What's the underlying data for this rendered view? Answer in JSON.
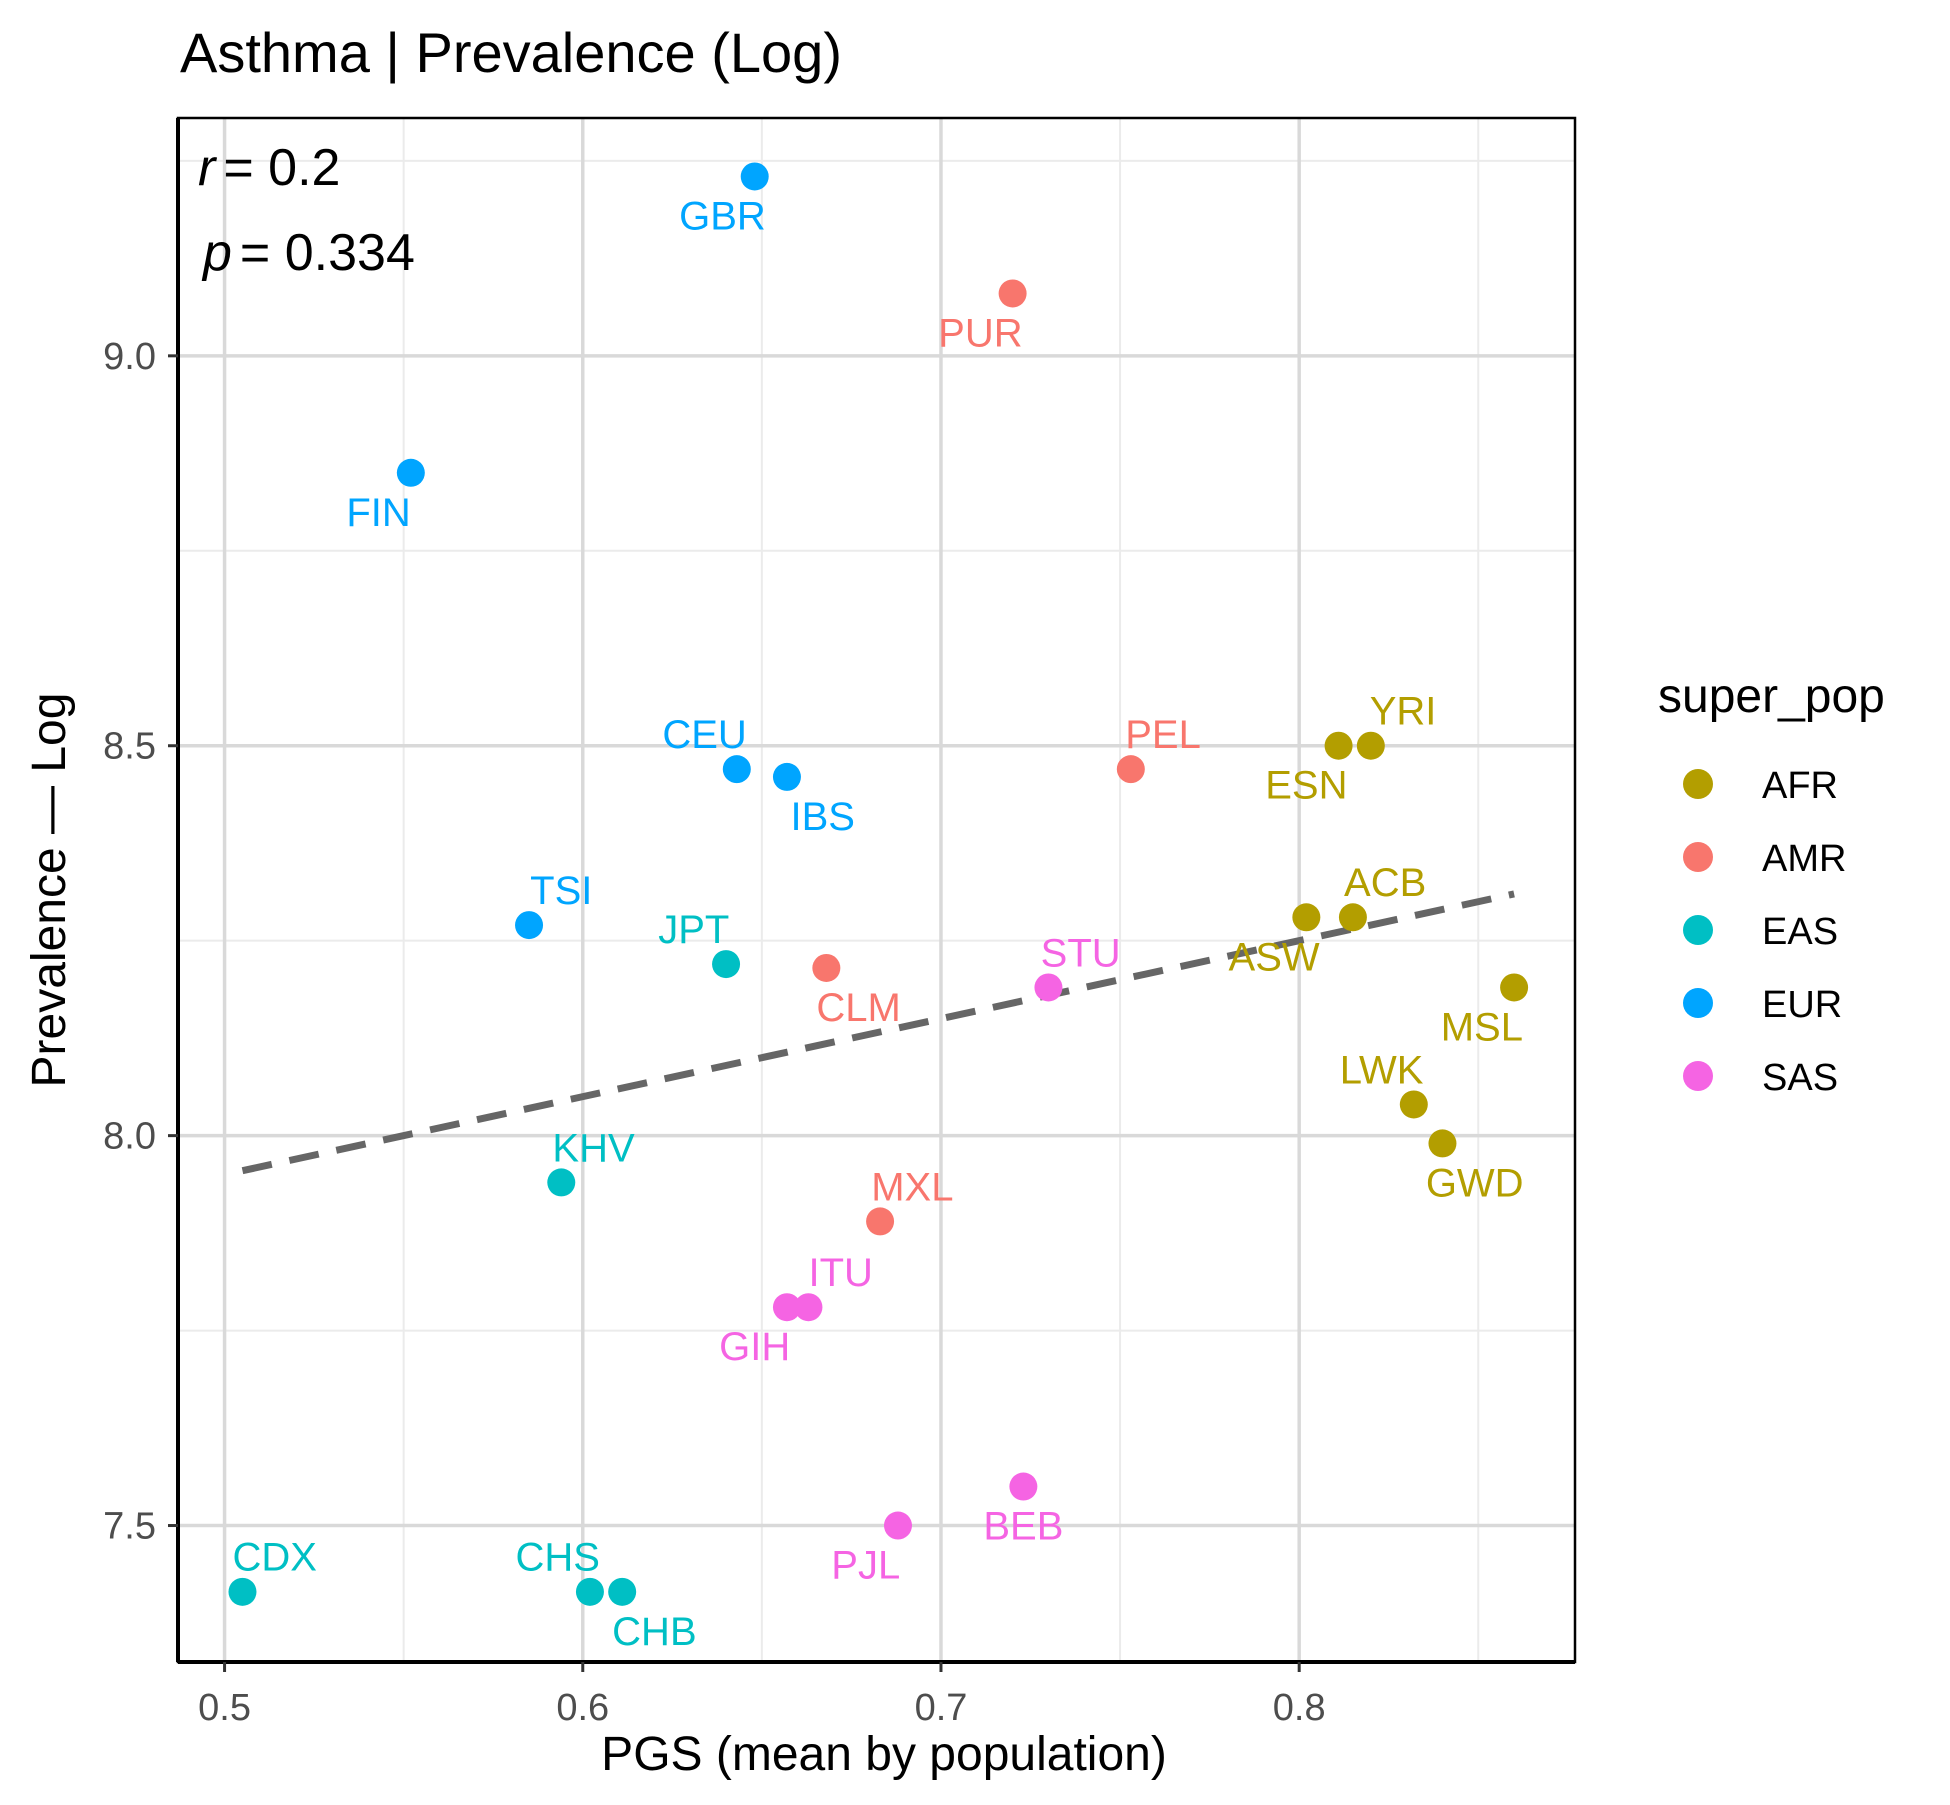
{
  "chart_data": {
    "type": "scatter",
    "title": "Asthma | Prevalence (Log)",
    "xlabel": "PGS (mean by population)",
    "ylabel": "Prevalence — Log",
    "xlim": [
      0.487,
      0.877
    ],
    "ylim": [
      7.325,
      9.305
    ],
    "x_ticks": [
      0.5,
      0.6,
      0.7,
      0.8
    ],
    "x_tick_labels": [
      "0.5",
      "0.6",
      "0.7",
      "0.8"
    ],
    "y_ticks": [
      7.5,
      8.0,
      8.5,
      9.0
    ],
    "y_tick_labels": [
      "7.5",
      "8.0",
      "8.5",
      "9.0"
    ],
    "grid": true,
    "stats": {
      "r_symbol": "r",
      "r_value": "= 0.2",
      "p_symbol": "p",
      "p_value": "= 0.334"
    },
    "trendline": {
      "style": "dashed",
      "color": "#666666",
      "x": [
        0.505,
        0.86
      ],
      "y": [
        7.955,
        8.31
      ]
    },
    "legend": {
      "title": "super_pop",
      "position": "right",
      "entries": [
        {
          "label": "AFR",
          "color": "#B39E00"
        },
        {
          "label": "AMR",
          "color": "#F8766D"
        },
        {
          "label": "EAS",
          "color": "#00BFC4"
        },
        {
          "label": "EUR",
          "color": "#00A5FF"
        },
        {
          "label": "SAS",
          "color": "#F564E3"
        }
      ]
    },
    "points": [
      {
        "label": "GBR",
        "pop": "EUR",
        "x": 0.648,
        "y": 9.23,
        "dx": -0.009,
        "dy": -0.05
      },
      {
        "label": "PUR",
        "pop": "AMR",
        "x": 0.72,
        "y": 9.08,
        "dx": -0.009,
        "dy": -0.05
      },
      {
        "label": "FIN",
        "pop": "EUR",
        "x": 0.552,
        "y": 8.85,
        "dx": -0.009,
        "dy": -0.05
      },
      {
        "label": "CEU",
        "pop": "EUR",
        "x": 0.643,
        "y": 8.47,
        "dx": -0.009,
        "dy": 0.045
      },
      {
        "label": "IBS",
        "pop": "EUR",
        "x": 0.657,
        "y": 8.46,
        "dx": 0.01,
        "dy": -0.05
      },
      {
        "label": "PEL",
        "pop": "AMR",
        "x": 0.753,
        "y": 8.47,
        "dx": 0.009,
        "dy": 0.045
      },
      {
        "label": "ESN",
        "pop": "AFR",
        "x": 0.811,
        "y": 8.5,
        "dx": -0.009,
        "dy": -0.05
      },
      {
        "label": "YRI",
        "pop": "AFR",
        "x": 0.82,
        "y": 8.5,
        "dx": 0.009,
        "dy": 0.045
      },
      {
        "label": "TSI",
        "pop": "EUR",
        "x": 0.585,
        "y": 8.27,
        "dx": 0.009,
        "dy": 0.045
      },
      {
        "label": "JPT",
        "pop": "EAS",
        "x": 0.64,
        "y": 8.22,
        "dx": -0.009,
        "dy": 0.045
      },
      {
        "label": "CLM",
        "pop": "AMR",
        "x": 0.668,
        "y": 8.215,
        "dx": 0.009,
        "dy": -0.05
      },
      {
        "label": "STU",
        "pop": "SAS",
        "x": 0.73,
        "y": 8.19,
        "dx": 0.009,
        "dy": 0.045
      },
      {
        "label": "ASW",
        "pop": "AFR",
        "x": 0.802,
        "y": 8.28,
        "dx": -0.009,
        "dy": -0.05
      },
      {
        "label": "ACB",
        "pop": "AFR",
        "x": 0.815,
        "y": 8.28,
        "dx": 0.009,
        "dy": 0.045
      },
      {
        "label": "MSL",
        "pop": "AFR",
        "x": 0.86,
        "y": 8.19,
        "dx": -0.009,
        "dy": -0.05
      },
      {
        "label": "LWK",
        "pop": "AFR",
        "x": 0.832,
        "y": 8.04,
        "dx": -0.009,
        "dy": 0.045
      },
      {
        "label": "GWD",
        "pop": "AFR",
        "x": 0.84,
        "y": 7.99,
        "dx": 0.009,
        "dy": -0.05
      },
      {
        "label": "KHV",
        "pop": "EAS",
        "x": 0.594,
        "y": 7.94,
        "dx": 0.009,
        "dy": 0.045
      },
      {
        "label": "MXL",
        "pop": "AMR",
        "x": 0.683,
        "y": 7.89,
        "dx": 0.009,
        "dy": 0.045
      },
      {
        "label": "ITU",
        "pop": "SAS",
        "x": 0.663,
        "y": 7.78,
        "dx": 0.009,
        "dy": 0.045
      },
      {
        "label": "GIH",
        "pop": "SAS",
        "x": 0.657,
        "y": 7.78,
        "dx": -0.009,
        "dy": -0.05
      },
      {
        "label": "BEB",
        "pop": "SAS",
        "x": 0.723,
        "y": 7.55,
        "dx": 0.0,
        "dy": -0.05
      },
      {
        "label": "PJL",
        "pop": "SAS",
        "x": 0.688,
        "y": 7.5,
        "dx": -0.009,
        "dy": -0.05
      },
      {
        "label": "CDX",
        "pop": "EAS",
        "x": 0.505,
        "y": 7.415,
        "dx": 0.009,
        "dy": 0.045
      },
      {
        "label": "CHS",
        "pop": "EAS",
        "x": 0.602,
        "y": 7.415,
        "dx": -0.009,
        "dy": 0.045
      },
      {
        "label": "CHB",
        "pop": "EAS",
        "x": 0.611,
        "y": 7.415,
        "dx": 0.009,
        "dy": -0.05
      }
    ]
  }
}
